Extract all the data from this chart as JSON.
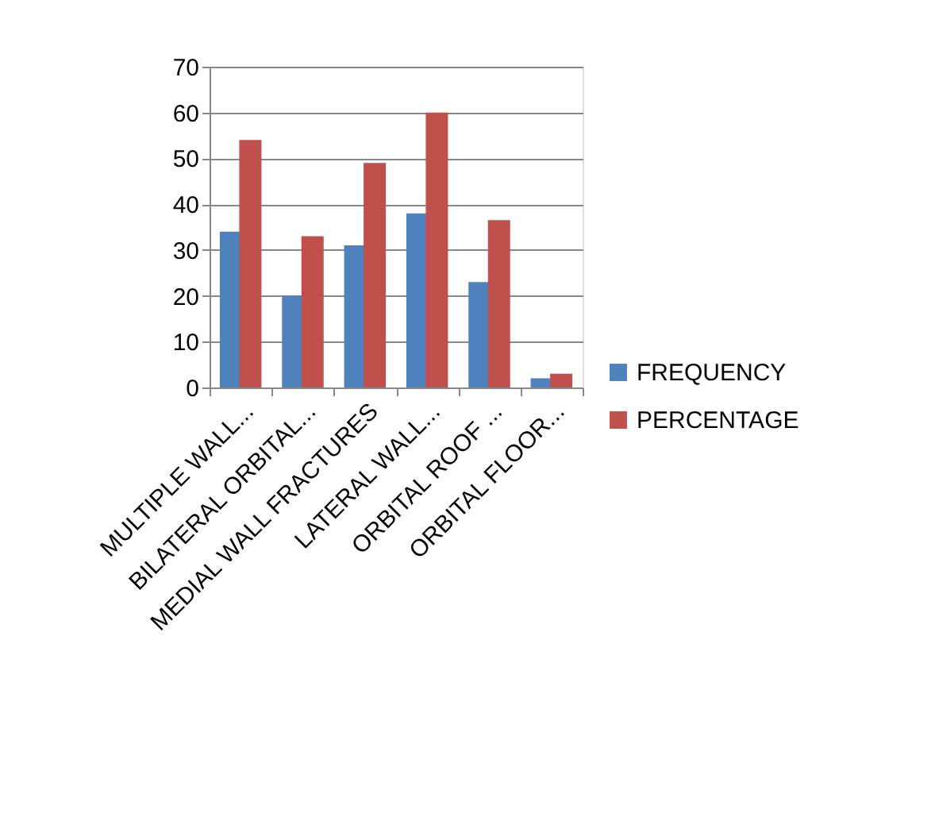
{
  "chart_data": {
    "type": "bar",
    "categories": [
      "MULTIPLE WALL...",
      "BILATERAL ORBITAL...",
      "MEDIAL WALL FRACTURES",
      "LATERAL WALL...",
      "ORBITAL ROOF ...",
      "ORBITAL FLOOR..."
    ],
    "series": [
      {
        "name": "FREQUENCY",
        "color": "#4f81bd",
        "values": [
          34,
          20,
          31,
          38,
          23,
          2
        ]
      },
      {
        "name": "PERCENTAGE",
        "color": "#c0504d",
        "values": [
          54,
          33,
          49,
          60,
          36.5,
          3
        ]
      }
    ],
    "ylim": [
      0,
      70
    ],
    "yticks": [
      0,
      10,
      20,
      30,
      40,
      50,
      60,
      70
    ],
    "grid": "y",
    "legend": "right"
  }
}
